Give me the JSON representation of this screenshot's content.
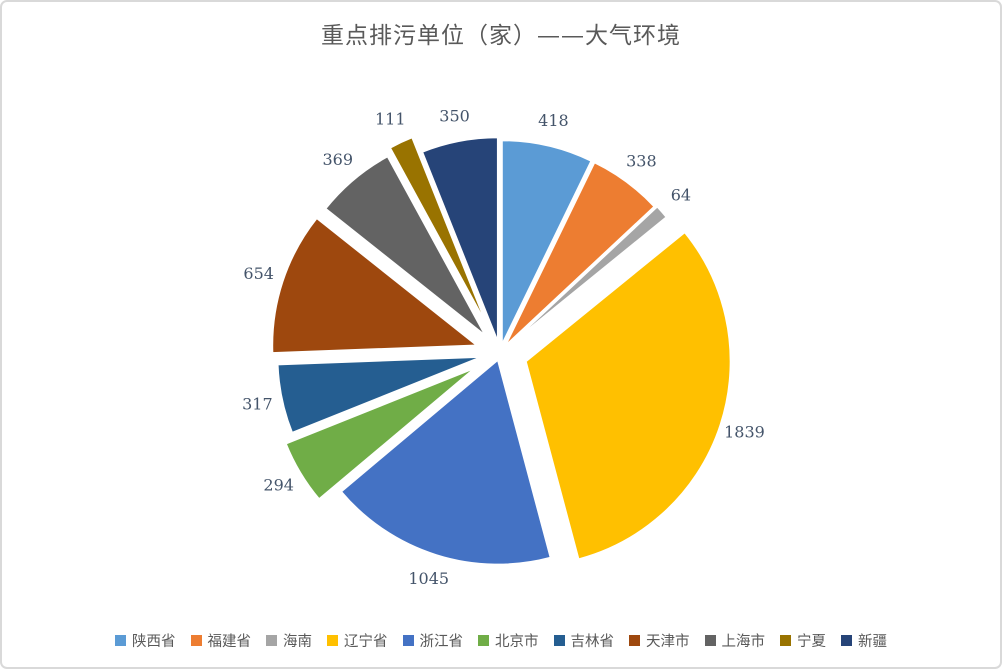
{
  "chart_data": {
    "type": "pie",
    "title": "重点排污单位（家）——大气环境",
    "legend_position": "bottom",
    "label_style": "outside-end, values only",
    "series": [
      {
        "id": "shaanxi",
        "label": "陕西省",
        "value": 418,
        "color": "#5B9BD5",
        "explode": 8
      },
      {
        "id": "fujian",
        "label": "福建省",
        "value": 338,
        "color": "#ED7D31",
        "explode": 8
      },
      {
        "id": "hainan",
        "label": "海南",
        "value": 64,
        "color": "#A5A5A5",
        "explode": 10
      },
      {
        "id": "liaoning",
        "label": "辽宁省",
        "value": 1839,
        "color": "#FFC000",
        "explode": 27
      },
      {
        "id": "zhejiang",
        "label": "浙江省",
        "value": 1045,
        "color": "#4472C4",
        "explode": 7
      },
      {
        "id": "beijing",
        "label": "北京市",
        "value": 294,
        "color": "#70AD47",
        "explode": 28
      },
      {
        "id": "jilin",
        "label": "吉林省",
        "value": 317,
        "color": "#255E91",
        "explode": 18
      },
      {
        "id": "tianjin",
        "label": "天津市",
        "value": 654,
        "color": "#9E480E",
        "explode": 24
      },
      {
        "id": "shanghai",
        "label": "上海市",
        "value": 369,
        "color": "#636363",
        "explode": 22
      },
      {
        "id": "ningxia",
        "label": "宁夏",
        "value": 111,
        "color": "#997300",
        "explode": 28
      },
      {
        "id": "xinjiang",
        "label": "新疆",
        "value": 350,
        "color": "#264478",
        "explode": 11
      }
    ]
  },
  "frame": {
    "border_color": "#D9D9D9",
    "background_color": "#FFFFFF",
    "title_color": "#595959",
    "data_label_color": "#44546A"
  }
}
